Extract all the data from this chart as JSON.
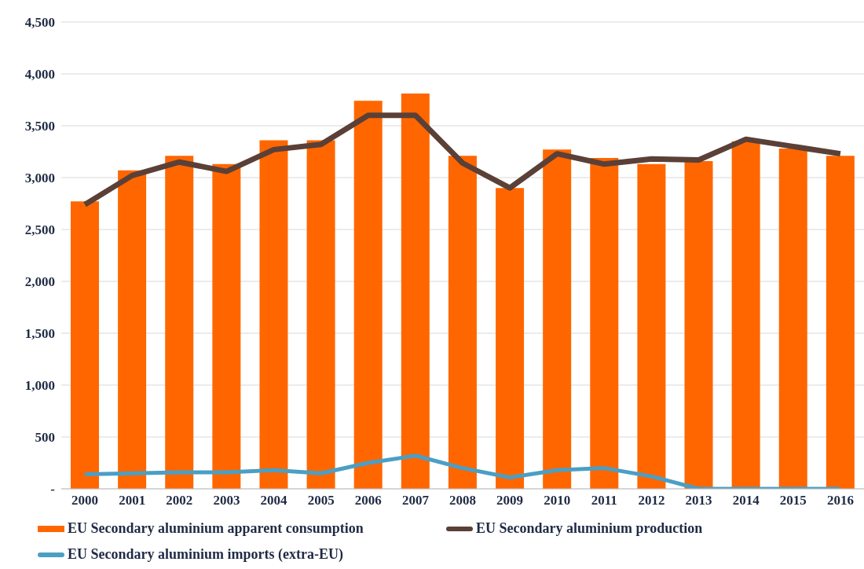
{
  "chart_data": {
    "type": "bar",
    "categories": [
      "2000",
      "2001",
      "2002",
      "2003",
      "2004",
      "2005",
      "2006",
      "2007",
      "2008",
      "2009",
      "2010",
      "2011",
      "2012",
      "2013",
      "2014",
      "2015",
      "2016"
    ],
    "series": [
      {
        "name": "EU Secondary aluminium apparent consumption",
        "color": "#ff6600",
        "values": [
          2770,
          3070,
          3210,
          3130,
          3360,
          3360,
          3740,
          3810,
          3210,
          2900,
          3270,
          3190,
          3130,
          3160,
          3350,
          3280,
          3210
        ]
      },
      {
        "name": "EU Secondary aluminium production",
        "type": "line",
        "color": "#5b4037",
        "values": [
          2740,
          3020,
          3150,
          3060,
          3270,
          3320,
          3600,
          3600,
          3140,
          2900,
          3230,
          3130,
          3180,
          3170,
          3370,
          3300,
          3230
        ]
      },
      {
        "name": "EU Secondary aluminium imports (extra-EU)",
        "type": "line",
        "color": "#4a9fc4",
        "values": [
          140,
          150,
          160,
          160,
          180,
          150,
          250,
          320,
          200,
          110,
          180,
          200,
          120,
          0,
          0,
          0,
          0
        ]
      }
    ],
    "ylim": [
      0,
      4500
    ],
    "yticks": [
      {
        "value": 0,
        "label": "-"
      },
      {
        "value": 500,
        "label": "500"
      },
      {
        "value": 1000,
        "label": "1,000"
      },
      {
        "value": 1500,
        "label": "1,500"
      },
      {
        "value": 2000,
        "label": "2,000"
      },
      {
        "value": 2500,
        "label": "2,500"
      },
      {
        "value": 3000,
        "label": "3,000"
      },
      {
        "value": 3500,
        "label": "3,500"
      },
      {
        "value": 4000,
        "label": "4,000"
      },
      {
        "value": 4500,
        "label": "4,500"
      }
    ],
    "grid": "y",
    "legend": "bottom",
    "marker": "none"
  }
}
